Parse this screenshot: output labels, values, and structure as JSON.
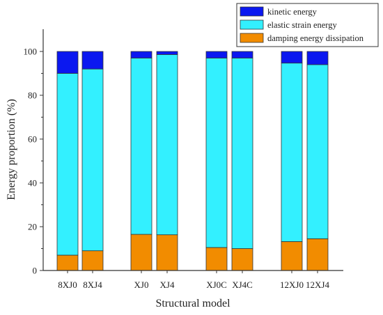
{
  "chart_data": {
    "type": "bar",
    "stacked": true,
    "xlabel": "Structural model",
    "ylabel": "Energy proportion (%)",
    "ylim": [
      0,
      108
    ],
    "yticks": [
      "0",
      "20",
      "40",
      "60",
      "80",
      "100"
    ],
    "categories": [
      "8XJ0",
      "8XJ4",
      "XJ0",
      "XJ4",
      "XJ0C",
      "XJ4C",
      "12XJ0",
      "12XJ4"
    ],
    "groups": [
      [
        0,
        1
      ],
      [
        2,
        3
      ],
      [
        4,
        5
      ],
      [
        6,
        7
      ]
    ],
    "legend_position": "top-right",
    "series": [
      {
        "name": "damping energy dissipation",
        "color": "#F28C00",
        "values": [
          7.0,
          9.0,
          16.5,
          16.3,
          10.5,
          10.0,
          13.2,
          14.5
        ]
      },
      {
        "name": "elastic strain energy",
        "color": "#33F0FF",
        "values": [
          83.0,
          83.0,
          80.5,
          82.3,
          86.5,
          87.0,
          81.5,
          79.5
        ]
      },
      {
        "name": "kinetic energy",
        "color": "#0B18F0",
        "values": [
          10.0,
          8.0,
          3.0,
          1.4,
          3.0,
          3.0,
          5.3,
          6.0
        ]
      }
    ],
    "legend_order": [
      2,
      1,
      0
    ],
    "grid": false
  }
}
